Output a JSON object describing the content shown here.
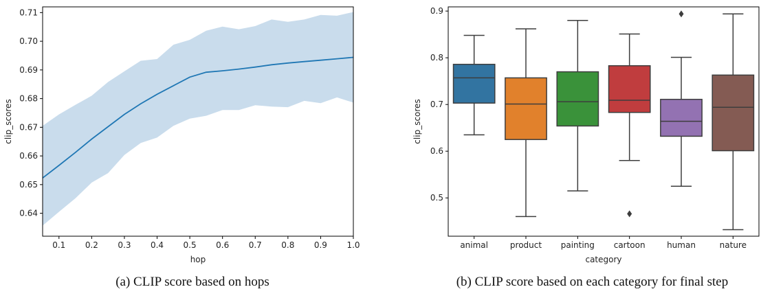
{
  "captions": {
    "a": "(a) CLIP score based on hops",
    "b": "(b) CLIP score based on each category for final step"
  },
  "chart_data": [
    {
      "type": "line",
      "xlabel": "hop",
      "ylabel": "clip_scores",
      "xlim": [
        0.05,
        1.0
      ],
      "ylim": [
        0.632,
        0.712
      ],
      "xticks": [
        0.1,
        0.2,
        0.3,
        0.4,
        0.5,
        0.6,
        0.7,
        0.8,
        0.9,
        1.0
      ],
      "xticklabels": [
        "0.1",
        "0.2",
        "0.3",
        "0.4",
        "0.5",
        "0.6",
        "0.7",
        "0.8",
        "0.9",
        "1.0"
      ],
      "yticks": [
        0.64,
        0.65,
        0.66,
        0.67,
        0.68,
        0.69,
        0.7,
        0.71
      ],
      "yticklabels": [
        "0.64",
        "0.65",
        "0.66",
        "0.67",
        "0.68",
        "0.69",
        "0.70",
        "0.71"
      ],
      "grid": false,
      "colors": {
        "line": "#1f77b4",
        "band": "#c9dcec"
      },
      "x": [
        0.05,
        0.1,
        0.15,
        0.2,
        0.25,
        0.3,
        0.35,
        0.4,
        0.45,
        0.5,
        0.55,
        0.6,
        0.65,
        0.7,
        0.75,
        0.8,
        0.85,
        0.9,
        0.95,
        1.0
      ],
      "mean": [
        0.6523,
        0.6567,
        0.6612,
        0.6659,
        0.6702,
        0.6745,
        0.6782,
        0.6815,
        0.6845,
        0.6875,
        0.6892,
        0.6897,
        0.6903,
        0.691,
        0.6918,
        0.6924,
        0.6929,
        0.6934,
        0.6939,
        0.6944
      ],
      "lower": [
        0.6357,
        0.6405,
        0.6452,
        0.6507,
        0.654,
        0.6603,
        0.6645,
        0.6664,
        0.6705,
        0.673,
        0.674,
        0.676,
        0.676,
        0.6777,
        0.6772,
        0.677,
        0.6792,
        0.6784,
        0.6804,
        0.6786
      ],
      "upper": [
        0.6705,
        0.6745,
        0.6778,
        0.681,
        0.6858,
        0.6895,
        0.6932,
        0.6938,
        0.6988,
        0.7005,
        0.7037,
        0.7051,
        0.7042,
        0.7053,
        0.7076,
        0.7068,
        0.7076,
        0.7092,
        0.7089,
        0.7102
      ]
    },
    {
      "type": "box",
      "xlabel": "category",
      "ylabel": "clip_scores",
      "ylim": [
        0.418,
        0.909
      ],
      "yticks": [
        0.5,
        0.6,
        0.7,
        0.8,
        0.9
      ],
      "yticklabels": [
        "0.5",
        "0.6",
        "0.7",
        "0.8",
        "0.9"
      ],
      "grid": false,
      "categories": [
        "animal",
        "product",
        "painting",
        "cartoon",
        "human",
        "nature"
      ],
      "boxes": [
        {
          "category": "animal",
          "whislo": 0.635,
          "q1": 0.703,
          "med": 0.757,
          "q3": 0.786,
          "whishi": 0.848,
          "fliers": [],
          "color": "#3274a1"
        },
        {
          "category": "product",
          "whislo": 0.46,
          "q1": 0.625,
          "med": 0.701,
          "q3": 0.757,
          "whishi": 0.862,
          "fliers": [],
          "color": "#e1812c"
        },
        {
          "category": "painting",
          "whislo": 0.515,
          "q1": 0.654,
          "med": 0.706,
          "q3": 0.77,
          "whishi": 0.88,
          "fliers": [],
          "color": "#3a923a"
        },
        {
          "category": "cartoon",
          "whislo": 0.58,
          "q1": 0.683,
          "med": 0.709,
          "q3": 0.783,
          "whishi": 0.851,
          "fliers": [
            0.466
          ],
          "color": "#c03d3e"
        },
        {
          "category": "human",
          "whislo": 0.525,
          "q1": 0.632,
          "med": 0.664,
          "q3": 0.711,
          "whishi": 0.801,
          "fliers": [
            0.894
          ],
          "color": "#9372b2"
        },
        {
          "category": "nature",
          "whislo": 0.432,
          "q1": 0.601,
          "med": 0.694,
          "q3": 0.763,
          "whishi": 0.894,
          "fliers": [],
          "color": "#845b53"
        }
      ]
    }
  ]
}
